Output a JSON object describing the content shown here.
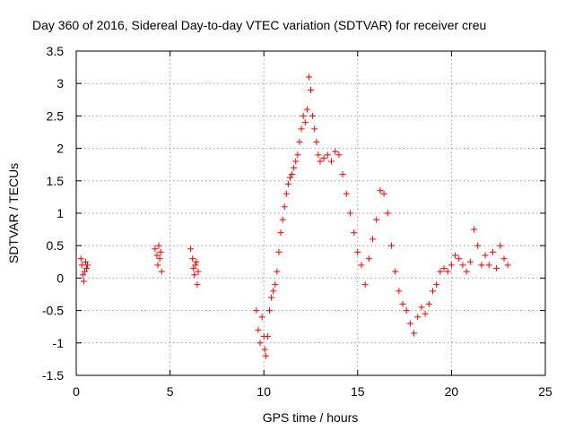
{
  "chart_data": {
    "type": "scatter",
    "title": "Day 360 of 2016, Sidereal Day-to-day VTEC variation (SDTVAR) for receiver creu",
    "xlabel": "GPS time / hours",
    "ylabel": "SDTVAR / TECUs",
    "xlim": [
      0,
      25
    ],
    "ylim": [
      -1.5,
      3.5
    ],
    "xticks": [
      0,
      5,
      10,
      15,
      20,
      25
    ],
    "xtick_labels": [
      "0",
      "5",
      "10",
      "15",
      "20",
      "25"
    ],
    "yticks": [
      -1.5,
      -1,
      -0.5,
      0,
      0.5,
      1,
      1.5,
      2,
      2.5,
      3,
      3.5
    ],
    "ytick_labels": [
      "-1.5",
      "-1",
      "-0.5",
      "0",
      "0.5",
      "1",
      "1.5",
      "2",
      "2.5",
      "3",
      "3.5"
    ],
    "grid": true,
    "marker": "+",
    "color": "#ff0000",
    "series": [
      {
        "name": "SDTVAR",
        "points": [
          [
            0.25,
            0.3
          ],
          [
            0.3,
            0.2
          ],
          [
            0.35,
            0.05
          ],
          [
            0.4,
            -0.05
          ],
          [
            0.45,
            0.1
          ],
          [
            0.5,
            0.25
          ],
          [
            0.55,
            0.15
          ],
          [
            0.6,
            0.2
          ],
          [
            4.2,
            0.45
          ],
          [
            4.3,
            0.35
          ],
          [
            4.35,
            0.2
          ],
          [
            4.4,
            0.5
          ],
          [
            4.45,
            0.3
          ],
          [
            4.5,
            0.4
          ],
          [
            4.55,
            0.1
          ],
          [
            6.1,
            0.45
          ],
          [
            6.2,
            0.3
          ],
          [
            6.25,
            0.15
          ],
          [
            6.3,
            0.05
          ],
          [
            6.35,
            0.2
          ],
          [
            6.4,
            0.25
          ],
          [
            6.45,
            -0.1
          ],
          [
            6.5,
            0.1
          ],
          [
            9.6,
            -0.5
          ],
          [
            9.7,
            -0.8
          ],
          [
            9.8,
            -1.0
          ],
          [
            9.9,
            -0.6
          ],
          [
            10.0,
            -0.9
          ],
          [
            10.05,
            -1.1
          ],
          [
            10.1,
            -1.2
          ],
          [
            10.2,
            -0.9
          ],
          [
            10.3,
            -0.5
          ],
          [
            10.4,
            -0.3
          ],
          [
            10.5,
            -0.2
          ],
          [
            10.6,
            -0.1
          ],
          [
            10.7,
            0.1
          ],
          [
            10.8,
            0.4
          ],
          [
            10.9,
            0.7
          ],
          [
            11.0,
            0.9
          ],
          [
            11.1,
            1.1
          ],
          [
            11.2,
            1.3
          ],
          [
            11.3,
            1.45
          ],
          [
            11.4,
            1.55
          ],
          [
            11.5,
            1.6
          ],
          [
            11.6,
            1.7
          ],
          [
            11.7,
            1.8
          ],
          [
            11.8,
            1.9
          ],
          [
            11.9,
            2.1
          ],
          [
            12.0,
            2.3
          ],
          [
            12.1,
            2.5
          ],
          [
            12.2,
            2.4
          ],
          [
            12.3,
            2.6
          ],
          [
            12.4,
            3.1
          ],
          [
            12.5,
            2.9
          ],
          [
            12.6,
            2.5
          ],
          [
            12.7,
            2.3
          ],
          [
            12.8,
            2.1
          ],
          [
            12.9,
            1.9
          ],
          [
            13.0,
            1.8
          ],
          [
            13.2,
            1.85
          ],
          [
            13.4,
            1.9
          ],
          [
            13.6,
            1.8
          ],
          [
            13.8,
            1.95
          ],
          [
            14.0,
            1.9
          ],
          [
            14.2,
            1.6
          ],
          [
            14.4,
            1.3
          ],
          [
            14.6,
            1.0
          ],
          [
            14.8,
            0.7
          ],
          [
            15.0,
            0.4
          ],
          [
            15.2,
            0.2
          ],
          [
            15.4,
            -0.1
          ],
          [
            15.6,
            0.3
          ],
          [
            15.8,
            0.6
          ],
          [
            16.0,
            0.9
          ],
          [
            16.2,
            1.35
          ],
          [
            16.4,
            1.3
          ],
          [
            16.6,
            1.0
          ],
          [
            16.8,
            0.5
          ],
          [
            17.0,
            0.1
          ],
          [
            17.2,
            -0.2
          ],
          [
            17.4,
            -0.4
          ],
          [
            17.6,
            -0.5
          ],
          [
            17.8,
            -0.7
          ],
          [
            18.0,
            -0.85
          ],
          [
            18.2,
            -0.6
          ],
          [
            18.4,
            -0.45
          ],
          [
            18.6,
            -0.55
          ],
          [
            18.8,
            -0.4
          ],
          [
            19.0,
            -0.2
          ],
          [
            19.2,
            -0.1
          ],
          [
            19.4,
            0.1
          ],
          [
            19.6,
            0.15
          ],
          [
            19.8,
            0.1
          ],
          [
            20.0,
            0.2
          ],
          [
            20.2,
            0.35
          ],
          [
            20.4,
            0.3
          ],
          [
            20.6,
            0.2
          ],
          [
            20.8,
            0.1
          ],
          [
            21.0,
            0.25
          ],
          [
            21.2,
            0.75
          ],
          [
            21.4,
            0.5
          ],
          [
            21.6,
            0.2
          ],
          [
            21.8,
            0.35
          ],
          [
            22.0,
            0.2
          ],
          [
            22.2,
            0.4
          ],
          [
            22.4,
            0.15
          ],
          [
            22.6,
            0.5
          ],
          [
            22.8,
            0.3
          ],
          [
            23.0,
            0.2
          ]
        ]
      }
    ]
  }
}
